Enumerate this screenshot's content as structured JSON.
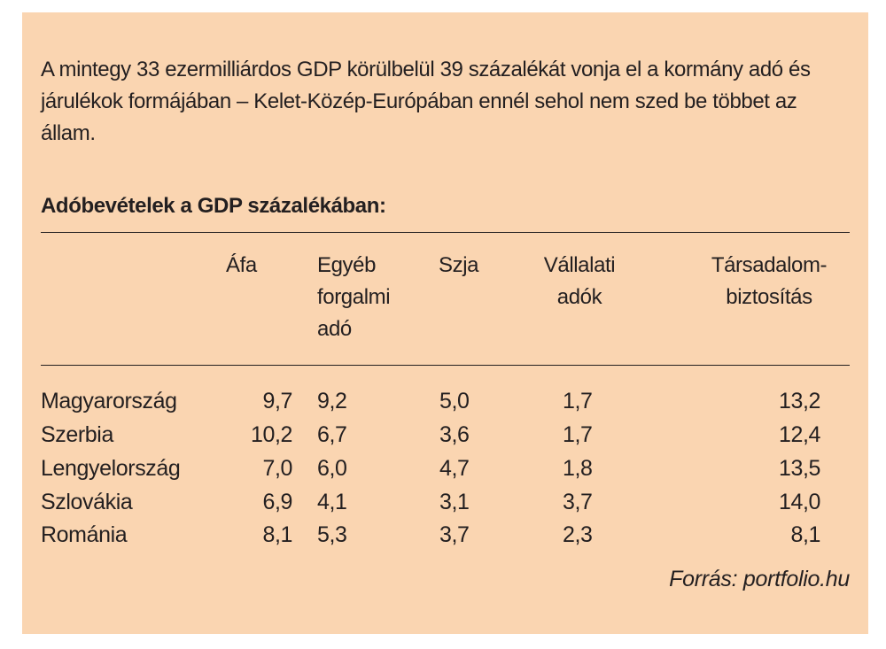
{
  "intro_text": "A mintegy 33 ezermilliárdos GDP körülbelül 39 százalékát vonja el a kormány adó és járulékok formájában – Kelet-Közép-Európában ennél sehol nem szed be többet az állam.",
  "table_title": "Adóbevételek a GDP százalékában:",
  "columns": {
    "afa": "Áfa",
    "egyeb_1": "Egyéb",
    "egyeb_2": "forgalmi",
    "egyeb_3": "adó",
    "szja": "Szja",
    "vallalati_1": "Vállalati",
    "vallalati_2": "adók",
    "tb_1": "Társadalom-",
    "tb_2": "biztosítás"
  },
  "rows": [
    {
      "country": "Magyarország",
      "afa": "9,7",
      "egyeb": "9,2",
      "szja": "5,0",
      "vallalati": "1,7",
      "tb": "13,2"
    },
    {
      "country": "Szerbia",
      "afa": "10,2",
      "egyeb": "6,7",
      "szja": "3,6",
      "vallalati": "1,7",
      "tb": "12,4"
    },
    {
      "country": "Lengyelország",
      "afa": "7,0",
      "egyeb": "6,0",
      "szja": "4,7",
      "vallalati": "1,8",
      "tb": "13,5"
    },
    {
      "country": "Szlovákia",
      "afa": "6,9",
      "egyeb": "4,1",
      "szja": "3,1",
      "vallalati": "3,7",
      "tb": "14,0"
    },
    {
      "country": "Románia",
      "afa": "8,1",
      "egyeb": "5,3",
      "szja": "3,7",
      "vallalati": "2,3",
      "tb": "8,1"
    }
  ],
  "source": "Forrás: portfolio.hu",
  "colors": {
    "background": "#fad5b1",
    "text": "#231f20"
  }
}
